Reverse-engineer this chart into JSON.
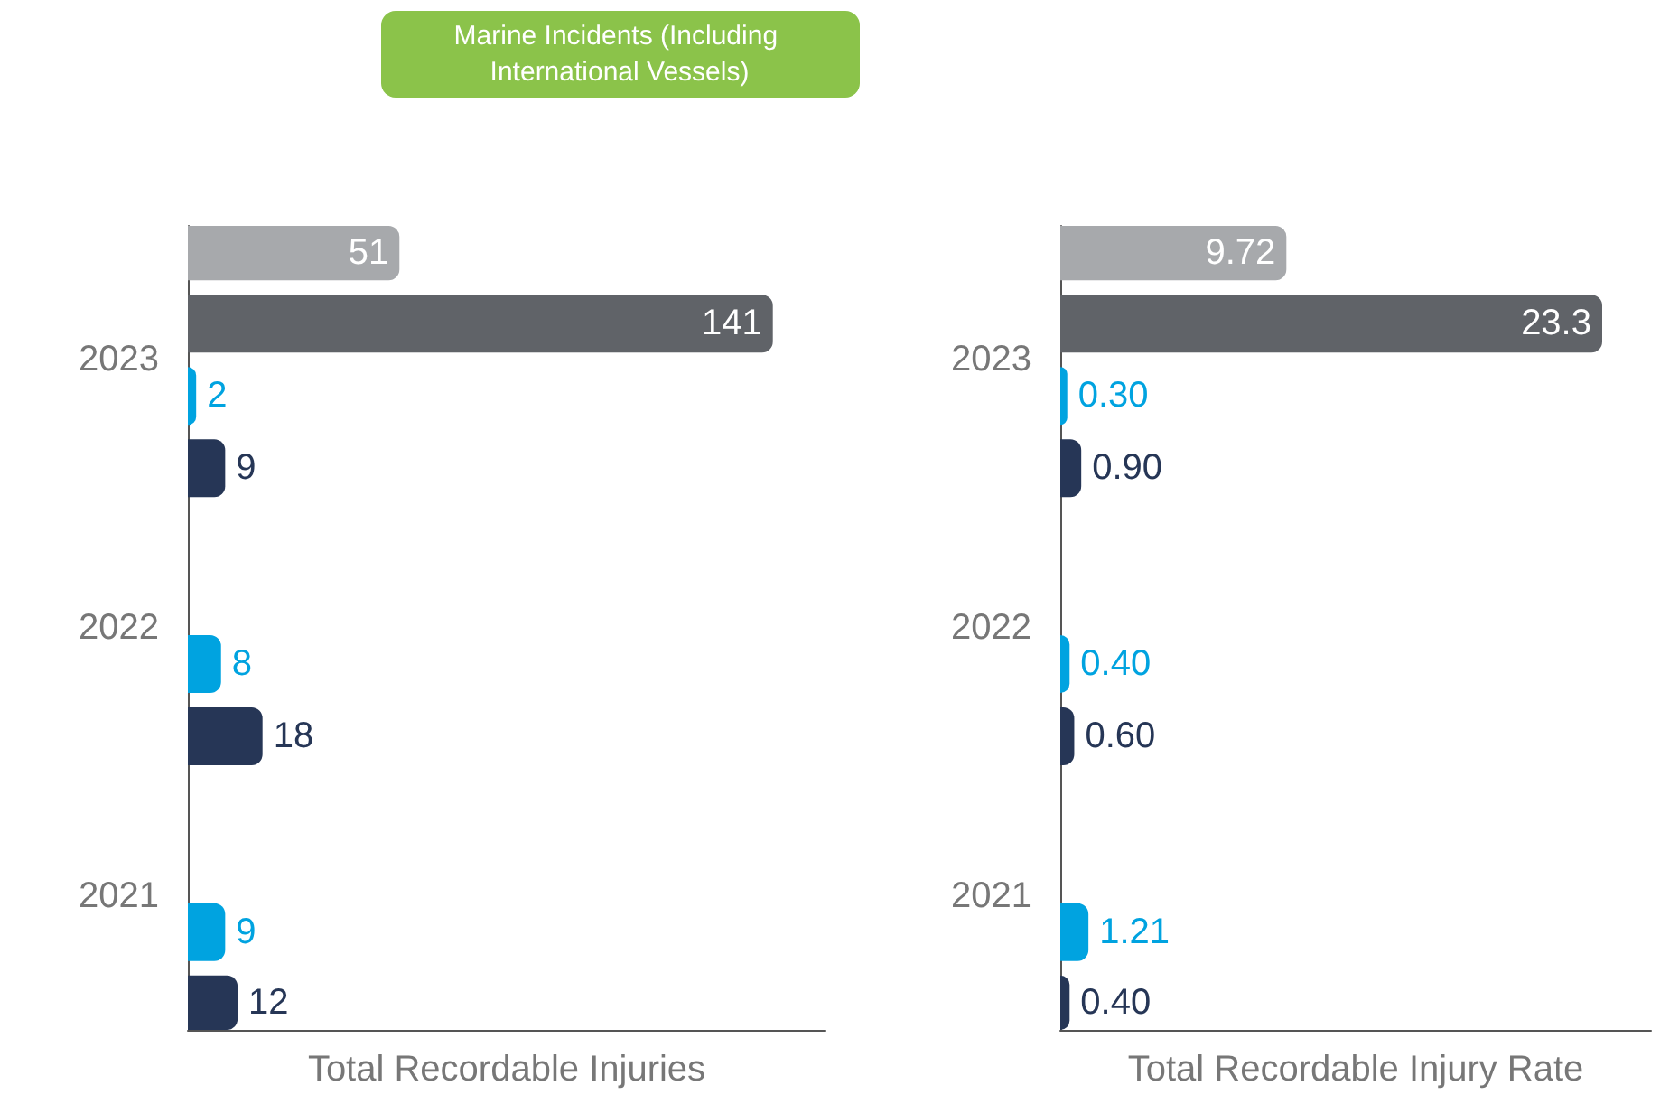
{
  "chart_data": [
    {
      "type": "bar",
      "orientation": "horizontal",
      "xlabel": "Total Recordable Injuries",
      "categories": [
        "2023",
        "2022",
        "2021"
      ],
      "annotations": [
        "Marine Incidents (Including International Vessels)"
      ],
      "series": [
        {
          "color": "#a7a9ac",
          "values": [
            51,
            null,
            null
          ],
          "value_labels": [
            "51",
            null,
            null
          ]
        },
        {
          "color": "#606368",
          "values": [
            141,
            null,
            null
          ],
          "value_labels": [
            "141",
            null,
            null
          ]
        },
        {
          "color": "#00a3e0",
          "values": [
            2,
            8,
            9
          ],
          "value_labels": [
            "2",
            "8",
            "9"
          ]
        },
        {
          "color": "#263656",
          "values": [
            9,
            18,
            12
          ],
          "value_labels": [
            "9",
            "18",
            "12"
          ]
        }
      ]
    },
    {
      "type": "bar",
      "orientation": "horizontal",
      "xlabel": "Total Recordable Injury Rate",
      "categories": [
        "2023",
        "2022",
        "2021"
      ],
      "series": [
        {
          "color": "#a7a9ac",
          "values": [
            9.72,
            null,
            null
          ],
          "value_labels": [
            "9.72",
            null,
            null
          ]
        },
        {
          "color": "#606368",
          "values": [
            23.3,
            null,
            null
          ],
          "value_labels": [
            "23.3",
            null,
            null
          ]
        },
        {
          "color": "#00a3e0",
          "values": [
            0.3,
            0.4,
            1.21
          ],
          "value_labels": [
            "0.30",
            "0.40",
            "1.21"
          ]
        },
        {
          "color": "#263656",
          "values": [
            0.9,
            0.6,
            0.4
          ],
          "value_labels": [
            "0.90",
            "0.60",
            "0.40"
          ]
        }
      ]
    }
  ]
}
